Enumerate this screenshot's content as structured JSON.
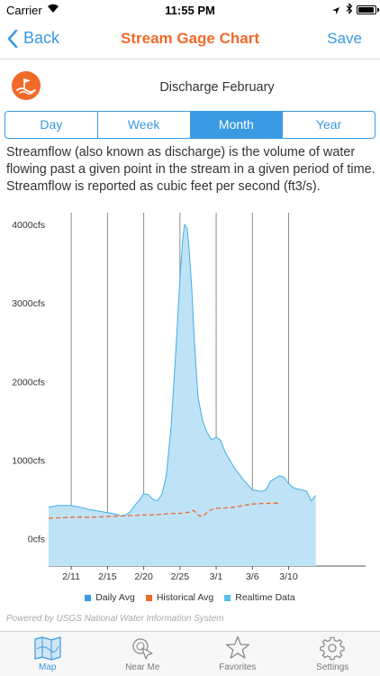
{
  "status_bar": {
    "carrier": "Carrier",
    "time": "11:55 PM"
  },
  "nav": {
    "back_label": "Back",
    "title": "Stream Gage Chart",
    "save_label": "Save"
  },
  "chart_heading": "Discharge February",
  "segments": [
    {
      "label": "Day",
      "active": false
    },
    {
      "label": "Week",
      "active": false
    },
    {
      "label": "Month",
      "active": true
    },
    {
      "label": "Year",
      "active": false
    }
  ],
  "description": "Streamflow (also known as discharge) is the volume of water flowing past a given point in the stream in a given period of time. Streamflow is reported as cubic feet per second (ft3/s).",
  "colors": {
    "accent": "#3a9ae3",
    "brand": "#f06a2a",
    "realtime_fill": "#bfe3f6",
    "realtime_line": "#41aee6",
    "historical": "#ee6a2a"
  },
  "chart_data": {
    "type": "area",
    "y_ticks": [
      "0cfs",
      "1000cfs",
      "2000cfs",
      "3000cfs",
      "4000cfs"
    ],
    "y_tick_values": [
      0,
      1000,
      2000,
      3000,
      4000
    ],
    "ylim": [
      -350,
      4150
    ],
    "xlim": [
      -0.5,
      34.5
    ],
    "x_ticks": [
      "2/11",
      "2/15",
      "2/20",
      "2/25",
      "3/1",
      "3/6",
      "3/10"
    ],
    "x_tick_values": [
      2,
      6,
      10,
      14,
      18,
      22,
      26
    ],
    "grid": true,
    "legend": [
      {
        "name": "Daily Avg",
        "color": "#3a9ae3"
      },
      {
        "name": "Historical Avg",
        "color": "#ee6a2a"
      },
      {
        "name": "Realtime Data",
        "color": "#5bc0ea"
      }
    ],
    "series": [
      {
        "name": "Realtime Data",
        "x": [
          -0.5,
          0.5,
          2,
          3,
          4,
          5,
          6,
          7,
          7.5,
          8,
          8.5,
          9,
          9.5,
          10,
          10.5,
          11,
          11.5,
          12,
          12.5,
          13,
          13.5,
          14,
          14.3,
          14.5,
          14.8,
          15,
          15.3,
          15.6,
          16,
          16.5,
          17,
          17.5,
          18,
          18.5,
          19,
          20,
          21,
          22,
          23,
          23.5,
          24,
          25,
          25.5,
          26,
          26.5,
          27,
          27.5,
          28,
          28.5,
          29
        ],
        "y": [
          400,
          420,
          420,
          400,
          370,
          350,
          330,
          310,
          290,
          300,
          340,
          420,
          490,
          570,
          560,
          500,
          480,
          560,
          800,
          1400,
          2300,
          3300,
          3800,
          4000,
          3950,
          3700,
          3200,
          2500,
          1800,
          1500,
          1350,
          1260,
          1290,
          1250,
          1100,
          900,
          750,
          620,
          600,
          620,
          730,
          800,
          780,
          700,
          650,
          630,
          620,
          600,
          480,
          550
        ]
      },
      {
        "name": "Historical Avg",
        "x": [
          -0.5,
          1,
          2,
          3,
          4,
          5,
          6,
          7,
          8,
          9,
          10,
          11,
          12,
          13,
          14,
          15,
          15.5,
          16,
          16.5,
          17,
          17.5,
          18,
          19,
          20,
          21,
          22,
          23,
          24,
          25
        ],
        "y": [
          260,
          265,
          270,
          275,
          270,
          275,
          280,
          285,
          290,
          295,
          300,
          300,
          310,
          320,
          320,
          335,
          360,
          300,
          280,
          330,
          370,
          385,
          390,
          400,
          420,
          440,
          445,
          450,
          450
        ]
      }
    ]
  },
  "powered_by": "Powered by USGS National Water Information System",
  "tabs": [
    {
      "label": "Map",
      "icon": "map-icon",
      "active": true
    },
    {
      "label": "Near Me",
      "icon": "near-me-icon",
      "active": false
    },
    {
      "label": "Favorites",
      "icon": "star-icon",
      "active": false
    },
    {
      "label": "Settings",
      "icon": "gear-icon",
      "active": false
    }
  ]
}
